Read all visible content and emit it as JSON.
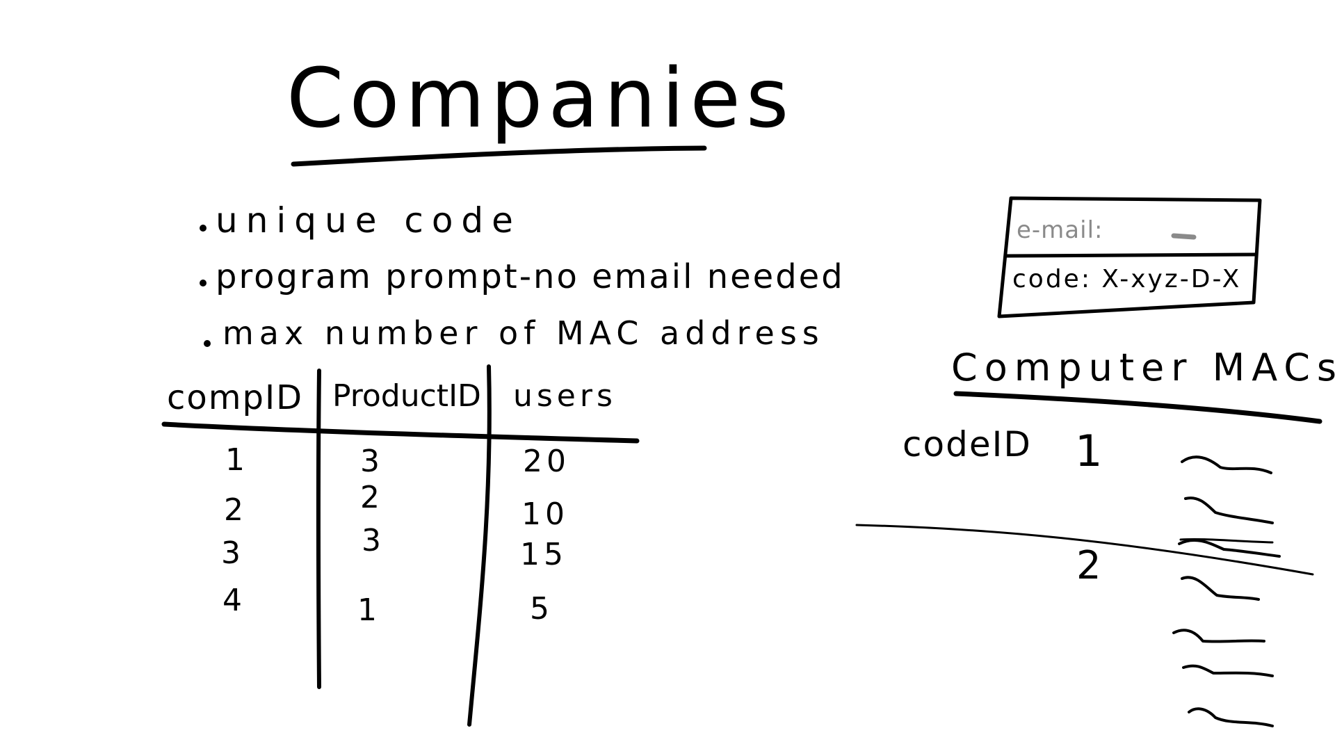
{
  "title": "Companies",
  "bullets": [
    "unique code",
    "program prompt-no email needed",
    "max number of MAC address"
  ],
  "companies_table": {
    "headers": [
      "compID",
      "ProductID",
      "users"
    ],
    "rows": [
      [
        "1",
        "3",
        "20"
      ],
      [
        "2",
        "2",
        "10"
      ],
      [
        "3",
        "3",
        "15"
      ],
      [
        "4",
        "1",
        "5"
      ]
    ]
  },
  "login_box": {
    "email_label": "e-mail:",
    "code_text": "code: X-xyz-D-X"
  },
  "computer_macs": {
    "title": "Computer MACs",
    "column_label": "codeID",
    "groups": [
      {
        "code_id": "1",
        "mac_entries": 4
      },
      {
        "code_id": "2",
        "mac_entries": 4
      }
    ]
  },
  "colors": {
    "ink": "#000000",
    "placeholder": "#8a8a8a",
    "background": "#ffffff"
  }
}
